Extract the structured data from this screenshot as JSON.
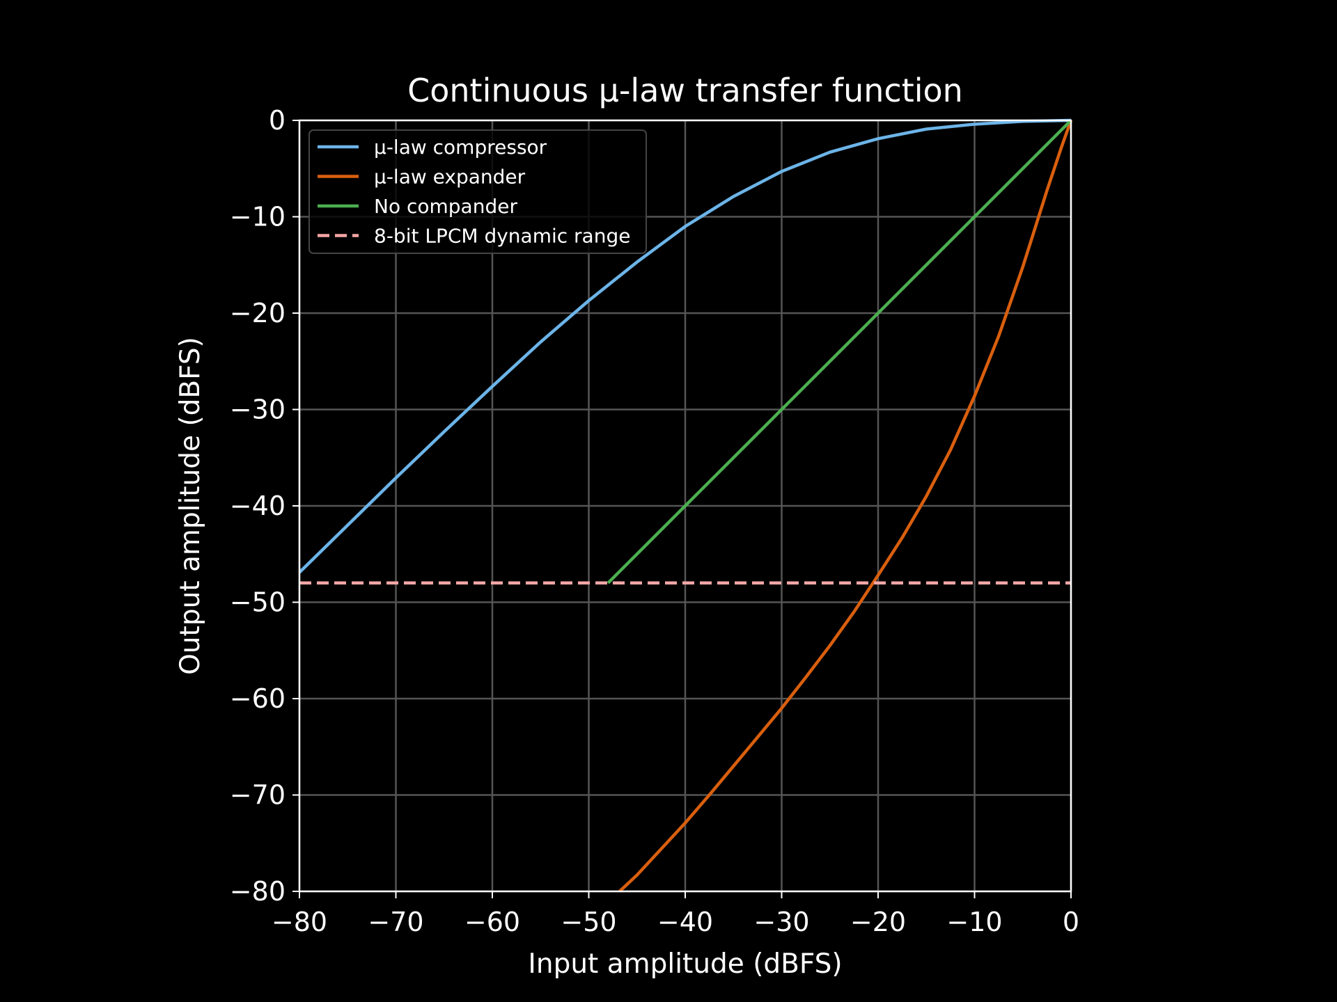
{
  "chart_data": {
    "type": "line",
    "title": "Continuous µ-law transfer function",
    "xlabel": "Input amplitude (dBFS)",
    "ylabel": "Output amplitude (dBFS)",
    "xlim": [
      -80,
      0
    ],
    "ylim": [
      -80,
      0
    ],
    "xticks": [
      -80,
      -70,
      -60,
      -50,
      -40,
      -30,
      -20,
      -10,
      0
    ],
    "yticks": [
      0,
      -10,
      -20,
      -30,
      -40,
      -50,
      -60,
      -70,
      -80
    ],
    "xtick_labels": [
      "−80",
      "−70",
      "−60",
      "−50",
      "−40",
      "−30",
      "−20",
      "−10",
      "0"
    ],
    "ytick_labels": [
      "0",
      "−10",
      "−20",
      "−30",
      "−40",
      "−50",
      "−60",
      "−70",
      "−80"
    ],
    "grid": true,
    "legend_position": "top-left",
    "series": [
      {
        "name": "µ-law compressor",
        "color": "#6cb4e8",
        "style": "solid",
        "x": [
          -80,
          -75,
          -70,
          -65,
          -60,
          -55,
          -50,
          -45,
          -40,
          -35,
          -30,
          -25,
          -20,
          -15,
          -10,
          -5,
          0
        ],
        "y": [
          -46.9,
          -42.0,
          -37.1,
          -32.3,
          -27.6,
          -23.0,
          -18.7,
          -14.7,
          -11.0,
          -7.9,
          -5.3,
          -3.3,
          -1.9,
          -0.9,
          -0.4,
          -0.1,
          0
        ]
      },
      {
        "name": "µ-law expander",
        "color": "#d95f0e",
        "style": "solid",
        "x": [
          -46.8,
          -45,
          -42.5,
          -40,
          -37.5,
          -35,
          -32.5,
          -30,
          -27.5,
          -25,
          -22.5,
          -20,
          -17.5,
          -15,
          -12.5,
          -10,
          -7.5,
          -5,
          -2.5,
          -1,
          0
        ],
        "y": [
          -80,
          -78.3,
          -75.6,
          -72.9,
          -70.0,
          -67.0,
          -64.0,
          -61.0,
          -57.8,
          -54.5,
          -51.0,
          -47.2,
          -43.3,
          -39.0,
          -34.2,
          -28.6,
          -22.4,
          -15.2,
          -7.3,
          -2.8,
          0
        ]
      },
      {
        "name": "No compander",
        "color": "#4caf50",
        "style": "solid",
        "x": [
          -48,
          0
        ],
        "y": [
          -48,
          0
        ]
      },
      {
        "name": "8-bit LPCM dynamic range",
        "color": "#f4a6a6",
        "style": "dashed",
        "x": [
          -80,
          0
        ],
        "y": [
          -48,
          -48
        ]
      }
    ]
  }
}
